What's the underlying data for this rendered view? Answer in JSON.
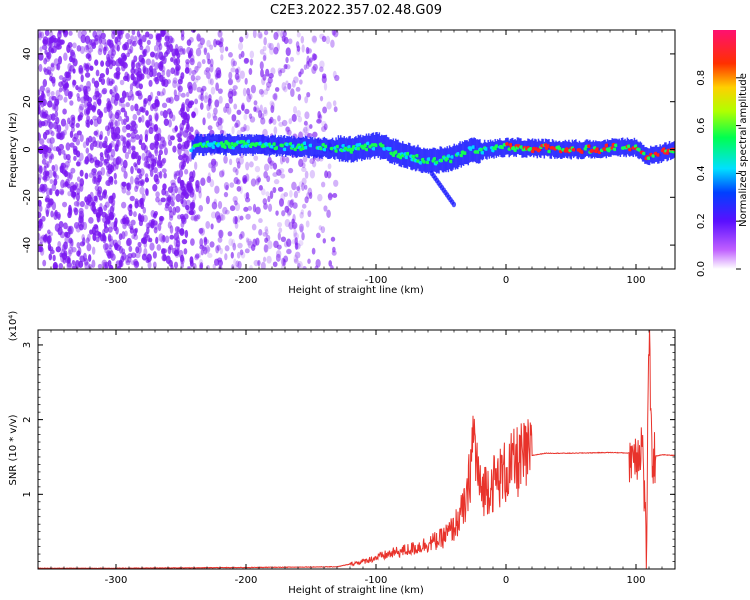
{
  "figure_title": "C2E3.2022.357.02.48.G09",
  "chart_data": [
    {
      "type": "heatmap",
      "xlabel": "Height of straight line (km)",
      "ylabel": "Frequency (Hz)",
      "xlim": [
        -360,
        130
      ],
      "ylim": [
        -50,
        50
      ],
      "x_ticks": [
        -300,
        -200,
        -100,
        0,
        100
      ],
      "y_ticks": [
        -40,
        -20,
        0,
        20,
        40
      ],
      "grid": false,
      "colorbar": {
        "label": "Normalized spectral amplitude",
        "range": [
          0,
          1
        ],
        "ticks": [
          0.0,
          0.2,
          0.4,
          0.6,
          0.8
        ],
        "colormap": "rainbow"
      },
      "ridge": {
        "description_points_x": [
          -240,
          -200,
          -150,
          -120,
          -100,
          -80,
          -60,
          -45,
          -30,
          0,
          50,
          100,
          108,
          130
        ],
        "description_points_y": [
          2,
          2,
          1,
          0,
          2,
          -2,
          -5,
          -4,
          -1,
          1,
          0,
          1,
          -3,
          0
        ],
        "noise_region_x": [
          -360,
          -140
        ]
      },
      "colors": {
        "noise": "#7a18f0",
        "low": "#1a1aff",
        "mid": "#15ff50",
        "high": "#ff2020"
      }
    },
    {
      "type": "line",
      "xlabel": "Height of straight line (km)",
      "ylabel": "SNR (10 * v/v)",
      "multiplier": "(x10⁴)",
      "xlim": [
        -360,
        130
      ],
      "ylim": [
        0,
        3.2
      ],
      "x_ticks": [
        -300,
        -200,
        -100,
        0,
        100
      ],
      "y_ticks": [
        1,
        2,
        3
      ],
      "grid": false,
      "series": [
        {
          "color": "#e8332b",
          "x": [
            -360,
            -300,
            -200,
            -130,
            -110,
            -90,
            -70,
            -50,
            -40,
            -30,
            -25,
            -20,
            -10,
            0,
            10,
            20,
            30,
            50,
            80,
            100,
            105,
            108,
            110,
            112,
            120,
            130
          ],
          "y": [
            0.01,
            0.01,
            0.02,
            0.03,
            0.1,
            0.2,
            0.28,
            0.4,
            0.55,
            0.9,
            1.8,
            1.05,
            1.15,
            1.3,
            1.45,
            1.52,
            1.55,
            1.55,
            1.56,
            1.55,
            1.7,
            0.2,
            3.2,
            1.5,
            1.53,
            1.52
          ]
        }
      ]
    }
  ]
}
